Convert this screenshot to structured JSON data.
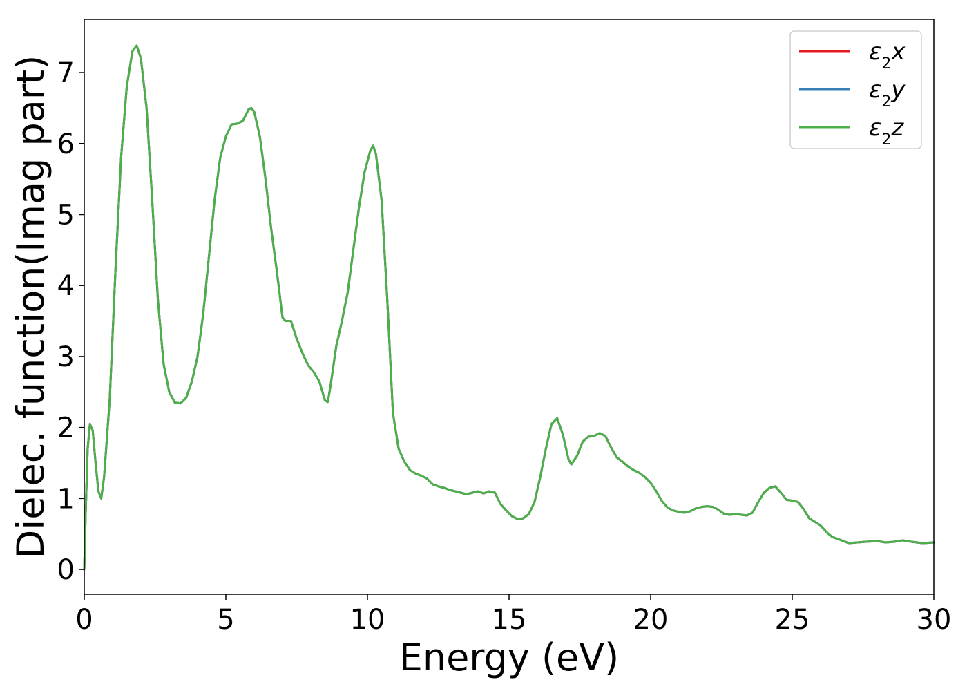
{
  "chart_data": {
    "type": "line",
    "title": "",
    "xlabel": "Energy (eV)",
    "ylabel": "Dielec. function(Imag part)",
    "xlim": [
      0,
      30
    ],
    "ylim": [
      -0.35,
      7.75
    ],
    "xticks": [
      0,
      5,
      10,
      15,
      20,
      25,
      30
    ],
    "yticks": [
      0,
      1,
      2,
      3,
      4,
      5,
      6,
      7
    ],
    "grid": false,
    "legend_position": "top-right",
    "series": [
      {
        "name": "ε₂x",
        "label_base": "ε",
        "label_sub": "2",
        "label_axis": "x",
        "color": "#e41a1c"
      },
      {
        "name": "ε₂y",
        "label_base": "ε",
        "label_sub": "2",
        "label_axis": "y",
        "color": "#377eb8"
      },
      {
        "name": "ε₂z",
        "label_base": "ε",
        "label_sub": "2",
        "label_axis": "z",
        "color": "#4daf4a"
      }
    ],
    "curve": [
      [
        0.0,
        0.0
      ],
      [
        0.05,
        0.8
      ],
      [
        0.12,
        1.7
      ],
      [
        0.2,
        2.05
      ],
      [
        0.3,
        1.95
      ],
      [
        0.4,
        1.5
      ],
      [
        0.5,
        1.1
      ],
      [
        0.6,
        1.0
      ],
      [
        0.7,
        1.3
      ],
      [
        0.9,
        2.4
      ],
      [
        1.1,
        4.2
      ],
      [
        1.3,
        5.8
      ],
      [
        1.5,
        6.8
      ],
      [
        1.7,
        7.3
      ],
      [
        1.85,
        7.38
      ],
      [
        2.0,
        7.2
      ],
      [
        2.2,
        6.5
      ],
      [
        2.4,
        5.2
      ],
      [
        2.6,
        3.8
      ],
      [
        2.8,
        2.9
      ],
      [
        3.0,
        2.5
      ],
      [
        3.2,
        2.35
      ],
      [
        3.4,
        2.34
      ],
      [
        3.6,
        2.42
      ],
      [
        3.8,
        2.65
      ],
      [
        4.0,
        3.0
      ],
      [
        4.2,
        3.6
      ],
      [
        4.4,
        4.4
      ],
      [
        4.6,
        5.2
      ],
      [
        4.8,
        5.8
      ],
      [
        5.0,
        6.1
      ],
      [
        5.2,
        6.27
      ],
      [
        5.4,
        6.28
      ],
      [
        5.6,
        6.32
      ],
      [
        5.8,
        6.48
      ],
      [
        5.9,
        6.5
      ],
      [
        6.0,
        6.45
      ],
      [
        6.2,
        6.1
      ],
      [
        6.4,
        5.5
      ],
      [
        6.6,
        4.8
      ],
      [
        6.8,
        4.2
      ],
      [
        7.0,
        3.55
      ],
      [
        7.1,
        3.5
      ],
      [
        7.3,
        3.5
      ],
      [
        7.5,
        3.25
      ],
      [
        7.7,
        3.05
      ],
      [
        7.9,
        2.88
      ],
      [
        8.1,
        2.78
      ],
      [
        8.3,
        2.65
      ],
      [
        8.5,
        2.38
      ],
      [
        8.6,
        2.36
      ],
      [
        8.7,
        2.6
      ],
      [
        8.9,
        3.15
      ],
      [
        9.1,
        3.5
      ],
      [
        9.3,
        3.9
      ],
      [
        9.5,
        4.5
      ],
      [
        9.7,
        5.1
      ],
      [
        9.9,
        5.6
      ],
      [
        10.1,
        5.9
      ],
      [
        10.2,
        5.97
      ],
      [
        10.3,
        5.85
      ],
      [
        10.5,
        5.2
      ],
      [
        10.7,
        3.8
      ],
      [
        10.9,
        2.2
      ],
      [
        11.1,
        1.7
      ],
      [
        11.3,
        1.52
      ],
      [
        11.5,
        1.4
      ],
      [
        11.7,
        1.35
      ],
      [
        11.9,
        1.32
      ],
      [
        12.1,
        1.28
      ],
      [
        12.3,
        1.2
      ],
      [
        12.5,
        1.17
      ],
      [
        12.7,
        1.15
      ],
      [
        12.9,
        1.12
      ],
      [
        13.1,
        1.1
      ],
      [
        13.3,
        1.08
      ],
      [
        13.5,
        1.06
      ],
      [
        13.7,
        1.08
      ],
      [
        13.9,
        1.1
      ],
      [
        14.1,
        1.07
      ],
      [
        14.3,
        1.1
      ],
      [
        14.5,
        1.08
      ],
      [
        14.7,
        0.92
      ],
      [
        14.9,
        0.83
      ],
      [
        15.1,
        0.75
      ],
      [
        15.3,
        0.71
      ],
      [
        15.5,
        0.72
      ],
      [
        15.7,
        0.78
      ],
      [
        15.9,
        0.95
      ],
      [
        16.1,
        1.3
      ],
      [
        16.3,
        1.7
      ],
      [
        16.5,
        2.05
      ],
      [
        16.7,
        2.13
      ],
      [
        16.9,
        1.9
      ],
      [
        17.1,
        1.55
      ],
      [
        17.2,
        1.48
      ],
      [
        17.4,
        1.6
      ],
      [
        17.6,
        1.8
      ],
      [
        17.8,
        1.87
      ],
      [
        18.0,
        1.88
      ],
      [
        18.2,
        1.92
      ],
      [
        18.4,
        1.88
      ],
      [
        18.6,
        1.72
      ],
      [
        18.8,
        1.58
      ],
      [
        19.0,
        1.52
      ],
      [
        19.2,
        1.45
      ],
      [
        19.4,
        1.4
      ],
      [
        19.6,
        1.36
      ],
      [
        19.8,
        1.3
      ],
      [
        20.0,
        1.22
      ],
      [
        20.2,
        1.1
      ],
      [
        20.4,
        0.96
      ],
      [
        20.6,
        0.87
      ],
      [
        20.8,
        0.83
      ],
      [
        21.0,
        0.81
      ],
      [
        21.2,
        0.8
      ],
      [
        21.4,
        0.82
      ],
      [
        21.6,
        0.86
      ],
      [
        21.8,
        0.88
      ],
      [
        22.0,
        0.89
      ],
      [
        22.2,
        0.88
      ],
      [
        22.4,
        0.84
      ],
      [
        22.6,
        0.78
      ],
      [
        22.8,
        0.77
      ],
      [
        23.0,
        0.78
      ],
      [
        23.2,
        0.77
      ],
      [
        23.4,
        0.76
      ],
      [
        23.6,
        0.8
      ],
      [
        23.8,
        0.95
      ],
      [
        24.0,
        1.08
      ],
      [
        24.2,
        1.15
      ],
      [
        24.4,
        1.17
      ],
      [
        24.6,
        1.08
      ],
      [
        24.8,
        0.98
      ],
      [
        25.0,
        0.97
      ],
      [
        25.2,
        0.95
      ],
      [
        25.4,
        0.85
      ],
      [
        25.6,
        0.72
      ],
      [
        25.8,
        0.67
      ],
      [
        26.0,
        0.62
      ],
      [
        26.2,
        0.53
      ],
      [
        26.4,
        0.46
      ],
      [
        26.6,
        0.43
      ],
      [
        26.8,
        0.4
      ],
      [
        27.0,
        0.37
      ],
      [
        27.3,
        0.38
      ],
      [
        27.6,
        0.39
      ],
      [
        28.0,
        0.4
      ],
      [
        28.3,
        0.38
      ],
      [
        28.6,
        0.39
      ],
      [
        28.9,
        0.41
      ],
      [
        29.2,
        0.39
      ],
      [
        29.6,
        0.37
      ],
      [
        30.0,
        0.38
      ]
    ]
  }
}
